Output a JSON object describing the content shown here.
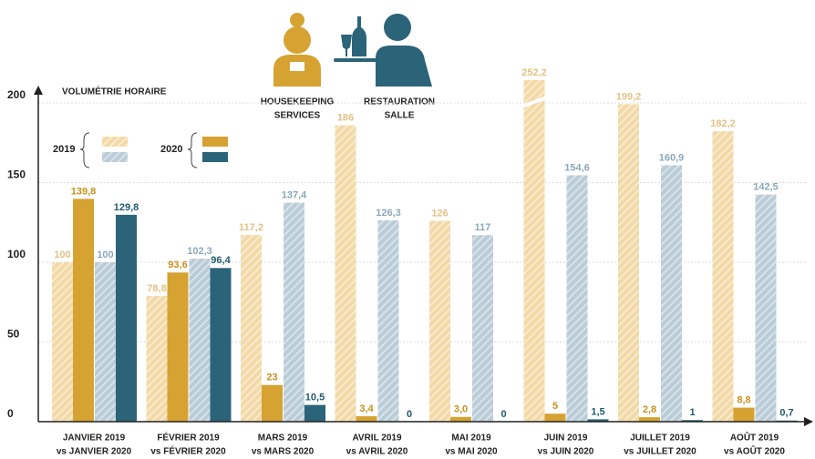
{
  "chart_data": {
    "type": "bar",
    "ylabel": "VOLUMÉTRIE HORAIRE",
    "ylim": [
      0,
      200
    ],
    "yticks": [
      0,
      50,
      100,
      150,
      200
    ],
    "grid": true,
    "axis_break": true,
    "categories": [
      [
        "JANVIER 2019",
        "vs JANVIER 2020"
      ],
      [
        "FÉVRIER 2019",
        "vs FÉVRIER 2020"
      ],
      [
        "MARS 2019",
        "vs MARS 2020"
      ],
      [
        "AVRIL 2019",
        "vs AVRIL 2020"
      ],
      [
        "MAI 2019",
        "vs MAI 2020"
      ],
      [
        "JUIN 2019",
        "vs JUIN 2020"
      ],
      [
        "JUILLET 2019",
        "vs JUILLET 2020"
      ],
      [
        "AOÛT 2019",
        "vs AOÛT 2020"
      ]
    ],
    "legend_groups": [
      [
        "HOUSEKEEPING",
        "SERVICES"
      ],
      [
        "RESTAURATION",
        "SALLE"
      ]
    ],
    "legend_years": [
      "2019",
      "2020"
    ],
    "series": [
      {
        "color": "#f2d9a6",
        "hatched": true,
        "label_color": "#e3c185",
        "values": [
          100,
          78.8,
          117.2,
          186,
          126,
          252.2,
          199.2,
          182.2
        ],
        "value_labels": [
          "100",
          "78,8",
          "117,2",
          "186",
          "126",
          "252,2",
          "199,2",
          "182,2"
        ]
      },
      {
        "color": "#d6a232",
        "hatched": false,
        "label_color": "#c8911e",
        "values": [
          139.8,
          93.6,
          23,
          3.4,
          3.0,
          5,
          2.8,
          8.8
        ],
        "value_labels": [
          "139,8",
          "93,6",
          "23",
          "3,4",
          "3,0",
          "5",
          "2,8",
          "8,8"
        ]
      },
      {
        "color": "#b9ccd7",
        "hatched": true,
        "label_color": "#89a9ba",
        "values": [
          100,
          102.3,
          137.4,
          126.3,
          117,
          154.6,
          160.9,
          142.5
        ],
        "value_labels": [
          "100",
          "102,3",
          "137,4",
          "126,3",
          "117",
          "154,6",
          "160,9",
          "142,5"
        ]
      },
      {
        "color": "#2b6479",
        "hatched": false,
        "label_color": "#1f5a6e",
        "values": [
          129.8,
          96.4,
          10.5,
          0,
          0,
          1.5,
          1,
          0.7
        ],
        "value_labels": [
          "129,8",
          "96,4",
          "10,5",
          "0",
          "0",
          "1,5",
          "1",
          "0,7"
        ]
      }
    ]
  }
}
